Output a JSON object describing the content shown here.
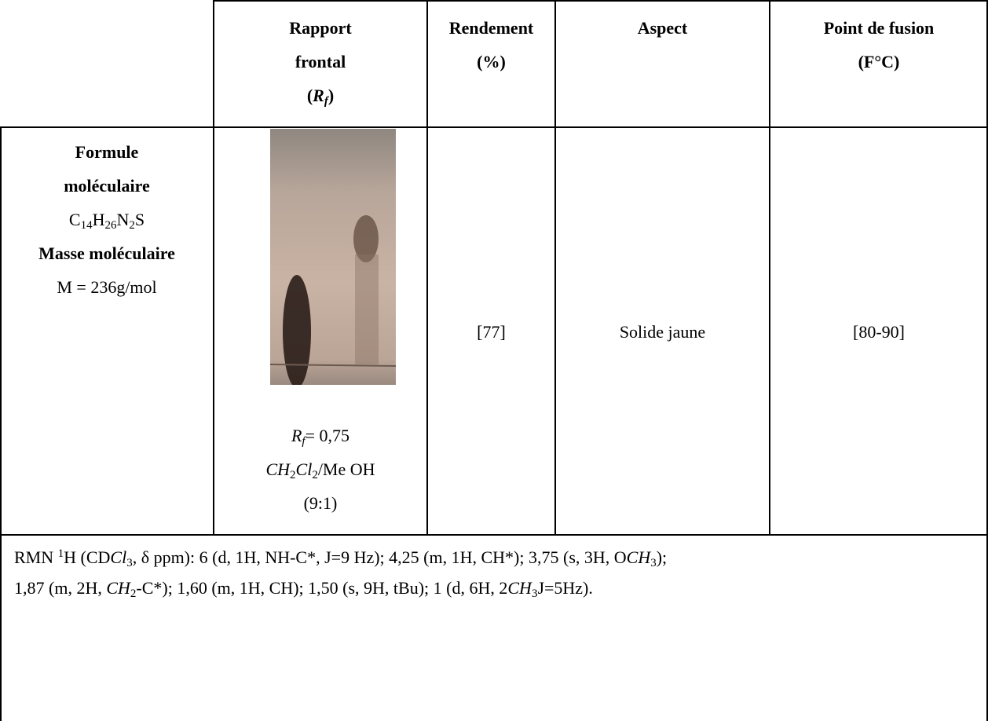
{
  "table": {
    "header": [
      [
        [
          {
            "text": "Rapport"
          }
        ],
        [
          {
            "text": "frontal"
          }
        ],
        [
          {
            "text": "("
          },
          {
            "text": "R",
            "style": "i"
          },
          {
            "text": "f",
            "style": "isub"
          },
          {
            "text": ")"
          }
        ]
      ],
      [
        [
          {
            "text": "Rendement"
          }
        ],
        [
          {
            "text": "(%)"
          }
        ]
      ],
      [
        [
          {
            "text": "Aspect"
          }
        ]
      ],
      [
        [
          {
            "text": "Point de fusion"
          }
        ],
        [
          {
            "text": "(F°C)"
          }
        ]
      ]
    ],
    "row": [
      [
        [
          {
            "text": "Formule",
            "style": "b"
          }
        ],
        [
          {
            "text": "moléculaire",
            "style": "b"
          }
        ],
        [
          {
            "text": "C"
          },
          {
            "text": "14",
            "style": "sub"
          },
          {
            "text": "H"
          },
          {
            "text": "26",
            "style": "sub"
          },
          {
            "text": "N"
          },
          {
            "text": "2",
            "style": "sub"
          },
          {
            "text": "S"
          }
        ],
        [
          {
            "text": "Masse moléculaire",
            "style": "b"
          }
        ],
        [
          {
            "text": "M = 236g/mol"
          }
        ]
      ],
      [
        [
          {
            "text": "R",
            "style": "i"
          },
          {
            "text": "f",
            "style": "isub"
          },
          {
            "text": "= 0,75"
          }
        ],
        [
          {
            "text": "CH",
            "style": "i"
          },
          {
            "text": "2",
            "style": "sub"
          },
          {
            "text": "Cl",
            "style": "i"
          },
          {
            "text": "2",
            "style": "sub"
          },
          {
            "text": "/Me OH"
          }
        ],
        [
          {
            "text": "(9:1)"
          }
        ]
      ],
      [
        [
          {
            "text": "[77]"
          }
        ]
      ],
      [
        [
          {
            "text": "Solide jaune"
          }
        ]
      ],
      [
        [
          {
            "text": "[80-90]"
          }
        ]
      ]
    ],
    "nmr": [
      [
        {
          "text": "RMN "
        },
        {
          "text": "1",
          "style": "sup"
        },
        {
          "text": "H (CD"
        },
        {
          "text": "Cl",
          "style": "i"
        },
        {
          "text": "3",
          "style": "sub"
        },
        {
          "text": ", δ ppm): 6 (d, 1H, NH-C*, J=9 Hz); 4,25 (m, 1H, CH*); 3,75 (s, 3H, O"
        },
        {
          "text": "CH",
          "style": "i"
        },
        {
          "text": "3",
          "style": "sub"
        },
        {
          "text": ");"
        }
      ],
      [
        {
          "text": "1,87 (m, 2H, "
        },
        {
          "text": "CH",
          "style": "i"
        },
        {
          "text": "2",
          "style": "sub"
        },
        {
          "text": "-C*); 1,60 (m, 1H, CH); 1,50 (s, 9H, tBu); 1 (d, 6H, 2"
        },
        {
          "text": "CH",
          "style": "i"
        },
        {
          "text": "3",
          "style": "sub"
        },
        {
          "text": "J=5Hz)."
        }
      ]
    ]
  }
}
